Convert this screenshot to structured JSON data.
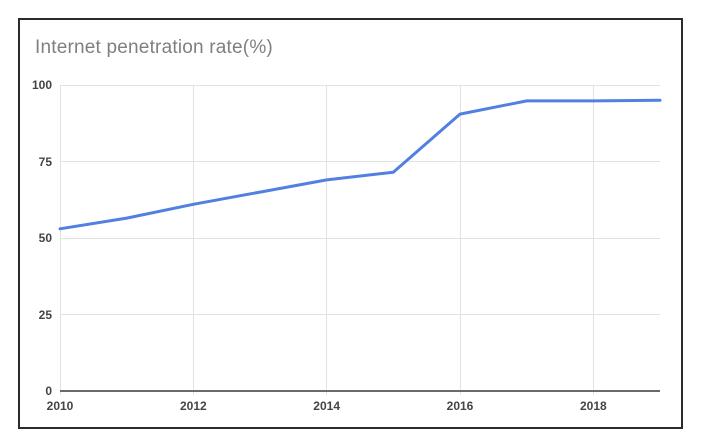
{
  "card": {
    "title": "Internet penetration rate(%)"
  },
  "colors": {
    "line": "#5180e0",
    "title_text": "#7f7f7f",
    "axis_text": "#444444",
    "gridline": "#e2e2e2",
    "axis_line": "#6a6a6a",
    "card_border": "#2b2b2b"
  },
  "chart_data": {
    "type": "line",
    "title": "Internet penetration rate(%)",
    "x": [
      2010,
      2011,
      2012,
      2013,
      2014,
      2015,
      2016,
      2017,
      2018,
      2019
    ],
    "series": [
      {
        "name": "Internet penetration rate(%)",
        "values": [
          53,
          56.5,
          61,
          65,
          69,
          71.5,
          90.5,
          94.8,
          94.8,
          95
        ]
      }
    ],
    "xlabel": "",
    "ylabel": "",
    "xlim": [
      2010,
      2019
    ],
    "ylim": [
      0,
      100
    ],
    "x_tick_labels": [
      "2010",
      "2012",
      "2014",
      "2016",
      "2018"
    ],
    "x_tick_years": [
      2010,
      2012,
      2014,
      2016,
      2018
    ],
    "y_ticks": [
      0,
      25,
      50,
      75,
      100
    ],
    "grid": true,
    "legend_position": "none",
    "line_color": "#5180e0"
  }
}
